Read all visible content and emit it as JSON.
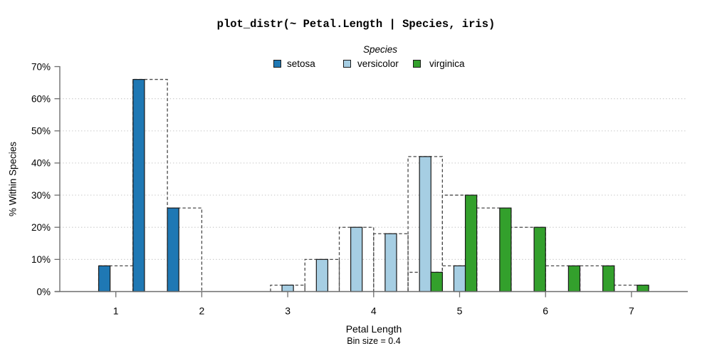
{
  "title": "plot_distr(~ Petal.Length | Species, iris)",
  "legend": {
    "title": "Species",
    "items": [
      {
        "label": "setosa",
        "color": "#1f78b4"
      },
      {
        "label": "versicolor",
        "color": "#a6cee3"
      },
      {
        "label": "virginica",
        "color": "#33a02c"
      }
    ]
  },
  "axes": {
    "y_label": "% Within Species",
    "y_ticks": [
      "0%",
      "10%",
      "20%",
      "30%",
      "40%",
      "50%",
      "60%",
      "70%"
    ],
    "x_ticks": [
      "1",
      "2",
      "3",
      "4",
      "5",
      "6",
      "7"
    ],
    "x_label": "Petal Length",
    "x_sublabel": "Bin size = 0.4"
  },
  "colors": {
    "background": "#ffffff",
    "axis": "#6e6e6e",
    "grid": "#c9c9c9",
    "dashed_outline": "#4a4a4a",
    "bar_border": "#1a1a1a",
    "text": "#000000"
  },
  "chart_data": {
    "type": "bar",
    "subtype": "dodged-histogram-percent-within-group",
    "title": "plot_distr(~ Petal.Length | Species, iris)",
    "xlabel": "Petal Length",
    "ylabel": "% Within Species",
    "bin_size": 0.4,
    "ylim": [
      0,
      70
    ],
    "xlim": [
      0.35,
      7.66
    ],
    "grid": "dotted horizontal lines at 10%-60%",
    "legend_position": "top-center",
    "dashed_outline_note": "each bin also drawn as a full-bin-width dashed rectangle at the bar's height",
    "series": [
      {
        "name": "setosa",
        "color": "#1f78b4",
        "dodge_slot": 0,
        "bin_starts": [
          0.8,
          1.2,
          1.6
        ],
        "percents": [
          8,
          66,
          26
        ]
      },
      {
        "name": "versicolor",
        "color": "#a6cee3",
        "dodge_slot": 1,
        "bin_starts": [
          2.8,
          3.2,
          3.6,
          4.0,
          4.4,
          4.8
        ],
        "percents": [
          2,
          10,
          20,
          18,
          42,
          8
        ]
      },
      {
        "name": "virginica",
        "color": "#33a02c",
        "dodge_slot": 2,
        "bin_starts": [
          4.4,
          4.8,
          5.2,
          5.6,
          6.0,
          6.4,
          6.8
        ],
        "percents": [
          6,
          30,
          26,
          20,
          8,
          8,
          2
        ]
      }
    ]
  }
}
